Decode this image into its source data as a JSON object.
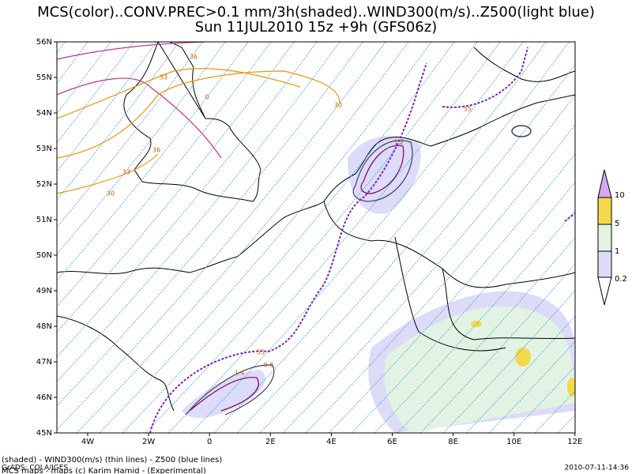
{
  "header": {
    "title": "MCS(color)..CONV.PREC>0.1 mm/3h(shaded)..WIND300(m/s)..Z500(light blue)",
    "subtitle": "Sun 11JUL2010 15z   +9h (GFS06z)"
  },
  "map": {
    "lat_labels": [
      "56N",
      "55N",
      "54N",
      "53N",
      "52N",
      "51N",
      "50N",
      "49N",
      "48N",
      "47N",
      "46N",
      "45N"
    ],
    "lon_labels": [
      "4W",
      "2W",
      "0",
      "2E",
      "4E",
      "6E",
      "8E",
      "10E",
      "12E"
    ],
    "contour_labels": [
      "36",
      "33",
      "0",
      "30",
      "36",
      "33",
      "30",
      "55",
      "55",
      "1.2",
      "1.4",
      "0.6"
    ]
  },
  "colorbar": {
    "labels": [
      "10",
      "5",
      "1",
      "0.2"
    ]
  },
  "footer": {
    "legend": "(shaded) - WIND300(m/s) (thin lines) - Z500 (blue lines)",
    "credit": "MCS maps - maps (c) Karim Hamid - (Experimental)",
    "source": "GrADS: COLA/IGES",
    "timestamp": "2010-07-11-14:36"
  }
}
